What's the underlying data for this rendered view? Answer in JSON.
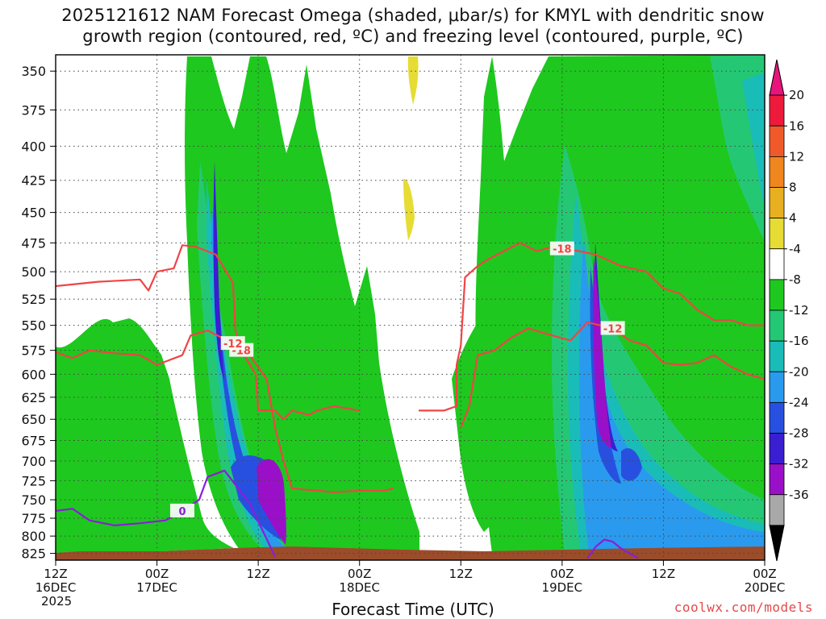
{
  "title": {
    "line1": "2025121612 NAM Forecast Omega (shaded, μbar/s) for KMYL with dendritic snow",
    "line2": "growth region (contoured, red, ºC) and freezing level (contoured, purple, ºC)"
  },
  "footer": {
    "xlabel": "Forecast Time (UTC)",
    "credit": "coolwx.com/models"
  },
  "chart_data": {
    "type": "heatmap",
    "title": "2025121612 NAM Forecast Omega (shaded, μbar/s) for KMYL with dendritic snow growth region (contoured, red, ºC) and freezing level (contoured, purple, ºC)",
    "xlabel": "Forecast Time (UTC)",
    "ylabel": "",
    "y_axis": {
      "scale": "pressure (mb), inverted",
      "range": [
        340,
        835
      ],
      "ticks": [
        350,
        375,
        400,
        425,
        450,
        475,
        500,
        525,
        550,
        575,
        600,
        625,
        650,
        675,
        700,
        725,
        750,
        775,
        800,
        825
      ]
    },
    "x_axis": {
      "range_hours": [
        0,
        84
      ],
      "ticks": [
        {
          "hour": 0,
          "lines": [
            "12Z",
            "16DEC",
            "2025"
          ]
        },
        {
          "hour": 12,
          "lines": [
            "00Z",
            "17DEC"
          ]
        },
        {
          "hour": 24,
          "lines": [
            "12Z"
          ]
        },
        {
          "hour": 36,
          "lines": [
            "00Z",
            "18DEC"
          ]
        },
        {
          "hour": 48,
          "lines": [
            "12Z"
          ]
        },
        {
          "hour": 60,
          "lines": [
            "00Z",
            "19DEC"
          ]
        },
        {
          "hour": 72,
          "lines": [
            "12Z"
          ]
        },
        {
          "hour": 84,
          "lines": [
            "00Z",
            "20DEC"
          ]
        }
      ]
    },
    "grid": true,
    "colorbar": {
      "units": "μbar/s",
      "labels": [
        "20",
        "16",
        "12",
        "8",
        "4",
        "-4",
        "-8",
        "-12",
        "-16",
        "-20",
        "-24",
        "-28",
        "-32",
        "-36"
      ],
      "bins": [
        {
          "range": ">24",
          "color": "#e8147c"
        },
        {
          "range": "20 to 24",
          "color": "#ee1a3c"
        },
        {
          "range": "16 to 20",
          "color": "#f05a2a"
        },
        {
          "range": "12 to 16",
          "color": "#f0861e"
        },
        {
          "range": "8 to 12",
          "color": "#e8b020"
        },
        {
          "range": "4 to 8",
          "color": "#e6dc34"
        },
        {
          "range": "-4 to 4",
          "color": "#ffffff"
        },
        {
          "range": "-8 to -4",
          "color": "#1ec81e"
        },
        {
          "range": "-12 to -8",
          "color": "#24c874"
        },
        {
          "range": "-16 to -12",
          "color": "#1abcb8"
        },
        {
          "range": "-20 to -16",
          "color": "#2a9aee"
        },
        {
          "range": "-24 to -20",
          "color": "#2850e0"
        },
        {
          "range": "-28 to -24",
          "color": "#3a1ed2"
        },
        {
          "range": "-32 to -28",
          "color": "#9a10c8"
        },
        {
          "range": "-36 to -32",
          "color": "#a8a8a8"
        },
        {
          "range": "<-36",
          "color": "#000000"
        }
      ]
    },
    "omega_features": [
      {
        "hours": [
          14,
          20
        ],
        "pressure": [
          345,
          830
        ],
        "min_value": -28,
        "note": "narrow core near hour 16.5"
      },
      {
        "hours": [
          18,
          24
        ],
        "pressure": [
          550,
          830
        ],
        "min_value": -32
      },
      {
        "hours": [
          52,
          80
        ],
        "pressure": [
          345,
          830
        ],
        "min_value": -8
      },
      {
        "hours": [
          61,
          70
        ],
        "pressure": [
          480,
          820
        ],
        "min_value": -28,
        "note": "core near hour 64.5"
      },
      {
        "hours": [
          42,
          43
        ],
        "pressure": [
          345,
          380
        ],
        "min_value": 4,
        "note": "small positive area"
      },
      {
        "hours": [
          41,
          42
        ],
        "pressure": [
          425,
          470
        ],
        "min_value": 4,
        "note": "small positive area"
      }
    ],
    "contours": [
      {
        "name": "-18",
        "color": "#f04444",
        "label": "-18",
        "points": [
          [
            0,
            513
          ],
          [
            5,
            509
          ],
          [
            10,
            507
          ],
          [
            11,
            517
          ],
          [
            12,
            500
          ],
          [
            14,
            497
          ],
          [
            15,
            477
          ],
          [
            16.5,
            478
          ],
          [
            19,
            485
          ],
          [
            21,
            510
          ],
          [
            21.3,
            555
          ],
          [
            22,
            575
          ],
          [
            23,
            590
          ],
          [
            23.7,
            600
          ],
          [
            24,
            640
          ],
          [
            26,
            640
          ],
          [
            27,
            650
          ],
          [
            28,
            640
          ],
          [
            30,
            645
          ],
          [
            31,
            640
          ],
          [
            33,
            635
          ],
          [
            36,
            640
          ]
        ]
      },
      {
        "name": "-18 (east)",
        "color": "#f04444",
        "label": "-18",
        "points": [
          [
            43,
            640
          ],
          [
            46,
            640
          ],
          [
            47.5,
            635
          ],
          [
            47.5,
            590
          ],
          [
            48,
            570
          ],
          [
            48.5,
            505
          ],
          [
            50,
            495
          ],
          [
            51,
            490
          ],
          [
            55,
            475
          ],
          [
            57,
            482
          ],
          [
            59,
            478
          ],
          [
            60,
            480
          ],
          [
            62,
            482
          ],
          [
            64,
            485
          ],
          [
            67,
            495
          ],
          [
            70,
            500
          ],
          [
            72,
            515
          ],
          [
            74,
            520
          ],
          [
            76,
            535
          ],
          [
            78,
            545
          ],
          [
            80,
            545
          ],
          [
            82,
            550
          ],
          [
            84,
            550
          ]
        ]
      },
      {
        "name": "-12",
        "color": "#f04444",
        "label": "-12",
        "points": [
          [
            0,
            577
          ],
          [
            2,
            583
          ],
          [
            4,
            575
          ],
          [
            7,
            578
          ],
          [
            10,
            580
          ],
          [
            12,
            590
          ],
          [
            15,
            580
          ],
          [
            16,
            560
          ],
          [
            18,
            555
          ],
          [
            21,
            568
          ],
          [
            23,
            580
          ],
          [
            25,
            605
          ],
          [
            26,
            660
          ],
          [
            27,
            700
          ],
          [
            28,
            735
          ],
          [
            33,
            740
          ],
          [
            36,
            738
          ],
          [
            39,
            738
          ],
          [
            40,
            735
          ]
        ]
      },
      {
        "name": "-12 (east)",
        "color": "#f04444",
        "label": "-12",
        "points": [
          [
            48,
            660
          ],
          [
            49,
            635
          ],
          [
            50,
            580
          ],
          [
            52,
            575
          ],
          [
            54,
            562
          ],
          [
            56,
            553
          ],
          [
            58,
            558
          ],
          [
            61,
            565
          ],
          [
            63,
            547
          ],
          [
            66,
            553
          ],
          [
            68,
            565
          ],
          [
            70,
            570
          ],
          [
            72,
            588
          ],
          [
            74,
            590
          ],
          [
            76,
            588
          ],
          [
            78,
            580
          ],
          [
            80,
            592
          ],
          [
            82,
            600
          ],
          [
            84,
            605
          ]
        ]
      },
      {
        "name": "0",
        "color": "#8a1ed8",
        "label": "0",
        "points": [
          [
            0,
            765
          ],
          [
            2,
            762
          ],
          [
            4,
            778
          ],
          [
            7,
            785
          ],
          [
            10,
            782
          ],
          [
            13,
            778
          ],
          [
            15,
            765
          ],
          [
            17,
            750
          ],
          [
            18,
            720
          ],
          [
            20,
            712
          ],
          [
            23,
            755
          ],
          [
            26,
            830
          ]
        ]
      },
      {
        "name": "0 (east)",
        "color": "#8a1ed8",
        "label": "",
        "points": [
          [
            63,
            832
          ],
          [
            64,
            815
          ],
          [
            65,
            805
          ],
          [
            66,
            808
          ],
          [
            67,
            818
          ],
          [
            69,
            832
          ]
        ]
      }
    ]
  }
}
